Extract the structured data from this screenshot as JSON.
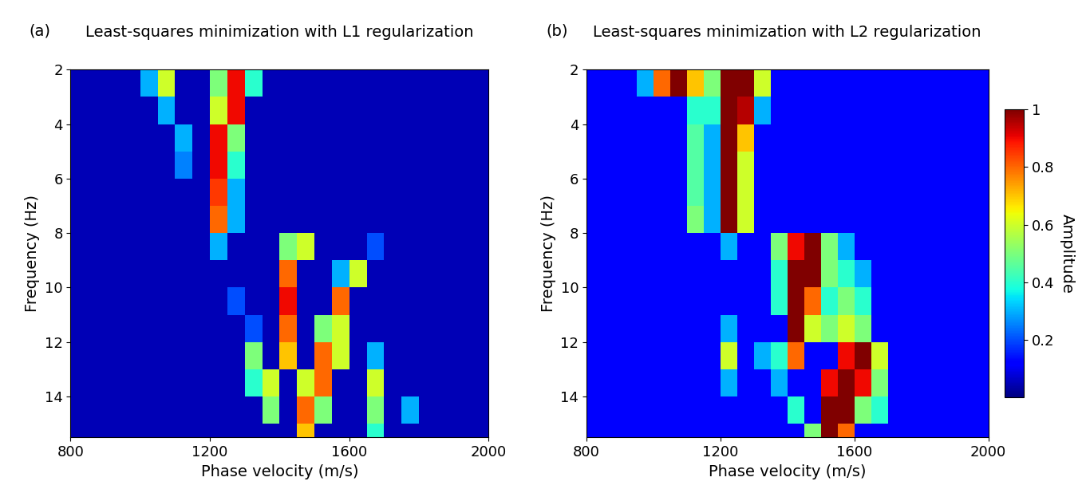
{
  "chart_data": [
    {
      "type": "heatmap",
      "panel": "(a)",
      "title": "Least-squares minimization with L1 regularization",
      "x_label": "Phase velocity (m/s)",
      "y_label": "Frequency (Hz)",
      "xlim": [
        800,
        2000
      ],
      "xticks": [
        800,
        1200,
        1600,
        2000
      ],
      "ylim": [
        15.5,
        2
      ],
      "yticks": [
        2,
        4,
        6,
        8,
        10,
        12,
        14
      ],
      "color_range": [
        0,
        1
      ],
      "x_edges": [
        800,
        850,
        900,
        950,
        1000,
        1050,
        1100,
        1150,
        1200,
        1250,
        1300,
        1350,
        1400,
        1450,
        1500,
        1550,
        1600,
        1650,
        1700,
        1750,
        1800,
        1850,
        1900,
        1950,
        2000
      ],
      "y_edges": [
        2,
        3,
        4,
        5,
        6,
        7,
        8,
        9,
        10,
        11,
        12,
        13,
        14,
        15,
        15.5
      ],
      "cells": [
        [
          0.05,
          0.05,
          0.05,
          0.05,
          0.3,
          0.6,
          0.05,
          0.05,
          0.5,
          0.9,
          0.4,
          0.05,
          0.05,
          0.05,
          0.05,
          0.05,
          0.05,
          0.05,
          0.05,
          0.05,
          0.05,
          0.05,
          0.05,
          0.05
        ],
        [
          0.05,
          0.05,
          0.05,
          0.05,
          0.05,
          0.3,
          0.05,
          0.05,
          0.6,
          0.9,
          0.05,
          0.05,
          0.05,
          0.05,
          0.05,
          0.05,
          0.05,
          0.05,
          0.05,
          0.05,
          0.05,
          0.05,
          0.05,
          0.05
        ],
        [
          0.05,
          0.05,
          0.05,
          0.05,
          0.05,
          0.05,
          0.3,
          0.05,
          0.9,
          0.5,
          0.05,
          0.05,
          0.05,
          0.05,
          0.05,
          0.05,
          0.05,
          0.05,
          0.05,
          0.05,
          0.05,
          0.05,
          0.05,
          0.05
        ],
        [
          0.05,
          0.05,
          0.05,
          0.05,
          0.05,
          0.05,
          0.25,
          0.05,
          0.9,
          0.4,
          0.05,
          0.05,
          0.05,
          0.05,
          0.05,
          0.05,
          0.05,
          0.05,
          0.05,
          0.05,
          0.05,
          0.05,
          0.05,
          0.05
        ],
        [
          0.05,
          0.05,
          0.05,
          0.05,
          0.05,
          0.05,
          0.05,
          0.05,
          0.85,
          0.3,
          0.05,
          0.05,
          0.05,
          0.05,
          0.05,
          0.05,
          0.05,
          0.05,
          0.05,
          0.05,
          0.05,
          0.05,
          0.05,
          0.05
        ],
        [
          0.05,
          0.05,
          0.05,
          0.05,
          0.05,
          0.05,
          0.05,
          0.05,
          0.8,
          0.3,
          0.05,
          0.05,
          0.05,
          0.05,
          0.05,
          0.05,
          0.05,
          0.05,
          0.05,
          0.05,
          0.05,
          0.05,
          0.05,
          0.05
        ],
        [
          0.05,
          0.05,
          0.05,
          0.05,
          0.05,
          0.05,
          0.05,
          0.05,
          0.3,
          0.05,
          0.05,
          0.05,
          0.5,
          0.6,
          0.05,
          0.05,
          0.05,
          0.2,
          0.05,
          0.05,
          0.05,
          0.05,
          0.05,
          0.05
        ],
        [
          0.05,
          0.05,
          0.05,
          0.05,
          0.05,
          0.05,
          0.05,
          0.05,
          0.05,
          0.05,
          0.05,
          0.05,
          0.8,
          0.05,
          0.05,
          0.3,
          0.6,
          0.05,
          0.05,
          0.05,
          0.05,
          0.05,
          0.05,
          0.05
        ],
        [
          0.05,
          0.05,
          0.05,
          0.05,
          0.05,
          0.05,
          0.05,
          0.05,
          0.05,
          0.2,
          0.05,
          0.05,
          0.9,
          0.05,
          0.05,
          0.8,
          0.05,
          0.05,
          0.05,
          0.05,
          0.05,
          0.05,
          0.05,
          0.05
        ],
        [
          0.05,
          0.05,
          0.05,
          0.05,
          0.05,
          0.05,
          0.05,
          0.05,
          0.05,
          0.05,
          0.2,
          0.05,
          0.8,
          0.05,
          0.5,
          0.6,
          0.05,
          0.05,
          0.05,
          0.05,
          0.05,
          0.05,
          0.05,
          0.05
        ],
        [
          0.05,
          0.05,
          0.05,
          0.05,
          0.05,
          0.05,
          0.05,
          0.05,
          0.05,
          0.05,
          0.5,
          0.05,
          0.7,
          0.05,
          0.8,
          0.6,
          0.05,
          0.3,
          0.05,
          0.05,
          0.05,
          0.05,
          0.05,
          0.05
        ],
        [
          0.05,
          0.05,
          0.05,
          0.05,
          0.05,
          0.05,
          0.05,
          0.05,
          0.05,
          0.05,
          0.4,
          0.6,
          0.05,
          0.6,
          0.8,
          0.05,
          0.05,
          0.6,
          0.05,
          0.05,
          0.05,
          0.05,
          0.05,
          0.05
        ],
        [
          0.05,
          0.05,
          0.05,
          0.05,
          0.05,
          0.05,
          0.05,
          0.05,
          0.05,
          0.05,
          0.05,
          0.5,
          0.05,
          0.8,
          0.5,
          0.05,
          0.05,
          0.5,
          0.05,
          0.3,
          0.05,
          0.05,
          0.05,
          0.05
        ],
        [
          0.05,
          0.05,
          0.05,
          0.05,
          0.05,
          0.05,
          0.05,
          0.05,
          0.05,
          0.05,
          0.05,
          0.05,
          0.05,
          0.7,
          0.05,
          0.05,
          0.05,
          0.4,
          0.05,
          0.05,
          0.05,
          0.05,
          0.05,
          0.05
        ]
      ]
    },
    {
      "type": "heatmap",
      "panel": "(b)",
      "title": "Least-squares minimization with L2 regularization",
      "x_label": "Phase velocity (m/s)",
      "y_label": "Frequency (Hz)",
      "xlim": [
        800,
        2000
      ],
      "xticks": [
        800,
        1200,
        1600,
        2000
      ],
      "ylim": [
        15.5,
        2
      ],
      "yticks": [
        2,
        4,
        6,
        8,
        10,
        12,
        14
      ],
      "color_range": [
        0,
        1
      ],
      "colorbar": {
        "label": "Amplitude",
        "ticks": [
          0.2,
          0.4,
          0.6,
          0.8,
          1
        ]
      },
      "x_edges": [
        800,
        850,
        900,
        950,
        1000,
        1050,
        1100,
        1150,
        1200,
        1250,
        1300,
        1350,
        1400,
        1450,
        1500,
        1550,
        1600,
        1650,
        1700,
        1750,
        1800,
        1850,
        1900,
        1950,
        2000
      ],
      "y_edges": [
        2,
        3,
        4,
        5,
        6,
        7,
        8,
        9,
        10,
        11,
        12,
        13,
        14,
        15,
        15.5
      ],
      "cells": [
        [
          0.12,
          0.12,
          0.12,
          0.3,
          0.8,
          1.0,
          0.7,
          0.5,
          1.0,
          1.0,
          0.6,
          0.12,
          0.12,
          0.12,
          0.12,
          0.12,
          0.12,
          0.12,
          0.12,
          0.12,
          0.12,
          0.12,
          0.12,
          0.12
        ],
        [
          0.12,
          0.12,
          0.12,
          0.12,
          0.12,
          0.12,
          0.4,
          0.4,
          1.0,
          0.95,
          0.3,
          0.12,
          0.12,
          0.12,
          0.12,
          0.12,
          0.12,
          0.12,
          0.12,
          0.12,
          0.12,
          0.12,
          0.12,
          0.12
        ],
        [
          0.12,
          0.12,
          0.12,
          0.12,
          0.12,
          0.12,
          0.45,
          0.3,
          1.0,
          0.7,
          0.12,
          0.12,
          0.12,
          0.12,
          0.12,
          0.12,
          0.12,
          0.12,
          0.12,
          0.12,
          0.12,
          0.12,
          0.12,
          0.12
        ],
        [
          0.12,
          0.12,
          0.12,
          0.12,
          0.12,
          0.12,
          0.45,
          0.3,
          1.0,
          0.6,
          0.12,
          0.12,
          0.12,
          0.12,
          0.12,
          0.12,
          0.12,
          0.12,
          0.12,
          0.12,
          0.12,
          0.12,
          0.12,
          0.12
        ],
        [
          0.12,
          0.12,
          0.12,
          0.12,
          0.12,
          0.12,
          0.45,
          0.3,
          1.0,
          0.6,
          0.12,
          0.12,
          0.12,
          0.12,
          0.12,
          0.12,
          0.12,
          0.12,
          0.12,
          0.12,
          0.12,
          0.12,
          0.12,
          0.12
        ],
        [
          0.12,
          0.12,
          0.12,
          0.12,
          0.12,
          0.12,
          0.5,
          0.3,
          1.0,
          0.6,
          0.12,
          0.12,
          0.12,
          0.12,
          0.12,
          0.12,
          0.12,
          0.12,
          0.12,
          0.12,
          0.12,
          0.12,
          0.12,
          0.12
        ],
        [
          0.12,
          0.12,
          0.12,
          0.12,
          0.12,
          0.12,
          0.12,
          0.12,
          0.3,
          0.12,
          0.12,
          0.5,
          0.9,
          1.0,
          0.5,
          0.3,
          0.12,
          0.12,
          0.12,
          0.12,
          0.12,
          0.12,
          0.12,
          0.12
        ],
        [
          0.12,
          0.12,
          0.12,
          0.12,
          0.12,
          0.12,
          0.12,
          0.12,
          0.12,
          0.12,
          0.12,
          0.4,
          1.0,
          1.0,
          0.5,
          0.4,
          0.3,
          0.12,
          0.12,
          0.12,
          0.12,
          0.12,
          0.12,
          0.12
        ],
        [
          0.12,
          0.12,
          0.12,
          0.12,
          0.12,
          0.12,
          0.12,
          0.12,
          0.12,
          0.12,
          0.12,
          0.4,
          1.0,
          0.8,
          0.4,
          0.5,
          0.4,
          0.12,
          0.12,
          0.12,
          0.12,
          0.12,
          0.12,
          0.12
        ],
        [
          0.12,
          0.12,
          0.12,
          0.12,
          0.12,
          0.12,
          0.12,
          0.12,
          0.3,
          0.12,
          0.12,
          0.12,
          1.0,
          0.6,
          0.5,
          0.6,
          0.5,
          0.12,
          0.12,
          0.12,
          0.12,
          0.12,
          0.12,
          0.12
        ],
        [
          0.12,
          0.12,
          0.12,
          0.12,
          0.12,
          0.12,
          0.12,
          0.12,
          0.6,
          0.12,
          0.3,
          0.4,
          0.8,
          0.12,
          0.12,
          0.9,
          1.0,
          0.6,
          0.12,
          0.12,
          0.12,
          0.12,
          0.12,
          0.12
        ],
        [
          0.12,
          0.12,
          0.12,
          0.12,
          0.12,
          0.12,
          0.12,
          0.12,
          0.3,
          0.12,
          0.12,
          0.3,
          0.12,
          0.12,
          0.9,
          1.0,
          0.9,
          0.5,
          0.12,
          0.12,
          0.12,
          0.12,
          0.12,
          0.12
        ],
        [
          0.12,
          0.12,
          0.12,
          0.12,
          0.12,
          0.12,
          0.12,
          0.12,
          0.12,
          0.12,
          0.12,
          0.12,
          0.4,
          0.12,
          1.0,
          1.0,
          0.5,
          0.4,
          0.12,
          0.12,
          0.12,
          0.12,
          0.12,
          0.12
        ],
        [
          0.12,
          0.12,
          0.12,
          0.12,
          0.12,
          0.12,
          0.12,
          0.12,
          0.12,
          0.12,
          0.12,
          0.12,
          0.12,
          0.5,
          1.0,
          0.8,
          0.12,
          0.12,
          0.12,
          0.12,
          0.12,
          0.12,
          0.12,
          0.12
        ]
      ]
    }
  ]
}
